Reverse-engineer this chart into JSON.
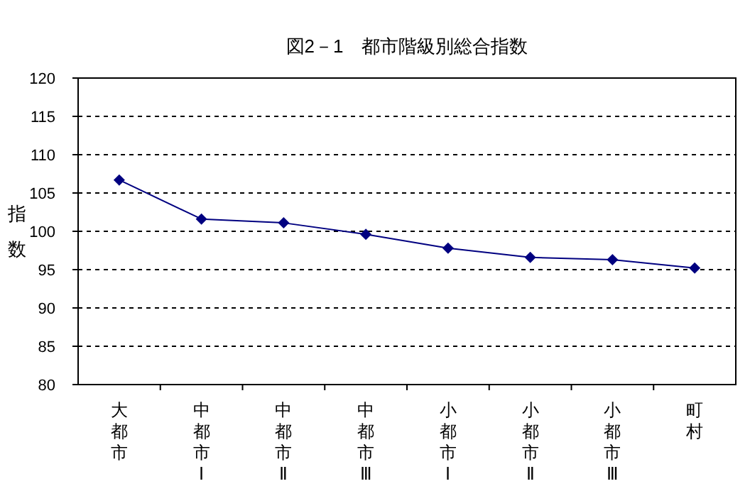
{
  "chart_data": {
    "type": "line",
    "title": "図2－1　都市階級別総合指数",
    "ylabel": "指数",
    "categories": [
      "大都市",
      "中都市Ⅰ",
      "中都市Ⅱ",
      "中都市Ⅲ",
      "小都市Ⅰ",
      "小都市Ⅱ",
      "小都市Ⅲ",
      "町村"
    ],
    "series": [
      {
        "color": "#000080",
        "values": [
          106.7,
          101.6,
          101.1,
          99.6,
          97.8,
          96.6,
          96.3,
          95.2
        ]
      }
    ],
    "ylim": [
      80,
      120
    ],
    "yticks": [
      80,
      85,
      90,
      95,
      100,
      105,
      110,
      115,
      120
    ],
    "grid": "y",
    "marker": "diamond",
    "line_style": "solid"
  }
}
